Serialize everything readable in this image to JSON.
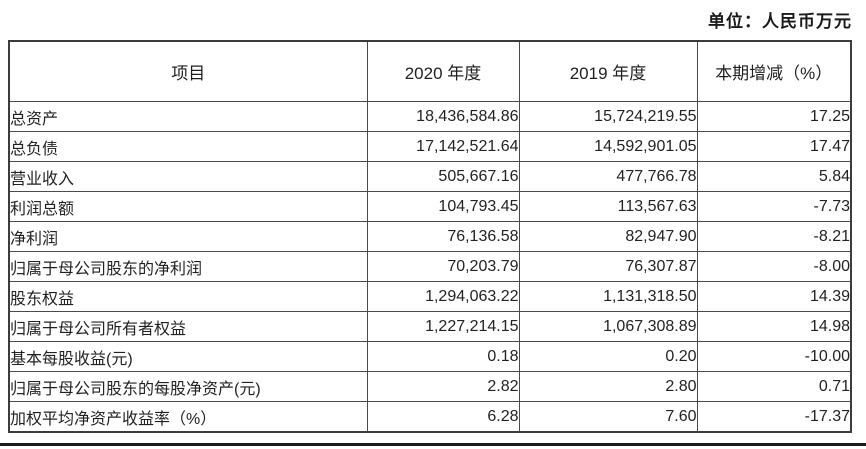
{
  "unit_label": "单位：人民币万元",
  "colors": {
    "background": "#ffffff",
    "text": "#1f1f1f",
    "table_border": "#4a4a4a",
    "outer_border": "#3c3c3c",
    "bottom_rule": "#1a1a1a"
  },
  "table": {
    "headers": [
      "项目",
      "2020 年度",
      "2019 年度",
      "本期增减（%）"
    ],
    "rows": [
      {
        "item": "总资产",
        "y2020": "18,436,584.86",
        "y2019": "15,724,219.55",
        "change": "17.25"
      },
      {
        "item": "总负债",
        "y2020": "17,142,521.64",
        "y2019": "14,592,901.05",
        "change": "17.47"
      },
      {
        "item": "营业收入",
        "y2020": "505,667.16",
        "y2019": "477,766.78",
        "change": "5.84"
      },
      {
        "item": "利润总额",
        "y2020": "104,793.45",
        "y2019": "113,567.63",
        "change": "-7.73"
      },
      {
        "item": "净利润",
        "y2020": "76,136.58",
        "y2019": "82,947.90",
        "change": "-8.21"
      },
      {
        "item": "归属于母公司股东的净利润",
        "y2020": "70,203.79",
        "y2019": "76,307.87",
        "change": "-8.00"
      },
      {
        "item": "股东权益",
        "y2020": "1,294,063.22",
        "y2019": "1,131,318.50",
        "change": "14.39"
      },
      {
        "item": "归属于母公司所有者权益",
        "y2020": "1,227,214.15",
        "y2019": "1,067,308.89",
        "change": "14.98"
      },
      {
        "item": "基本每股收益(元)",
        "y2020": "0.18",
        "y2019": "0.20",
        "change": "-10.00"
      },
      {
        "item": "归属于母公司股东的每股净资产(元)",
        "y2020": "2.82",
        "y2019": "2.80",
        "change": "0.71"
      },
      {
        "item": "加权平均净资产收益率（%）",
        "y2020": "6.28",
        "y2019": "7.60",
        "change": "-17.37"
      }
    ]
  }
}
